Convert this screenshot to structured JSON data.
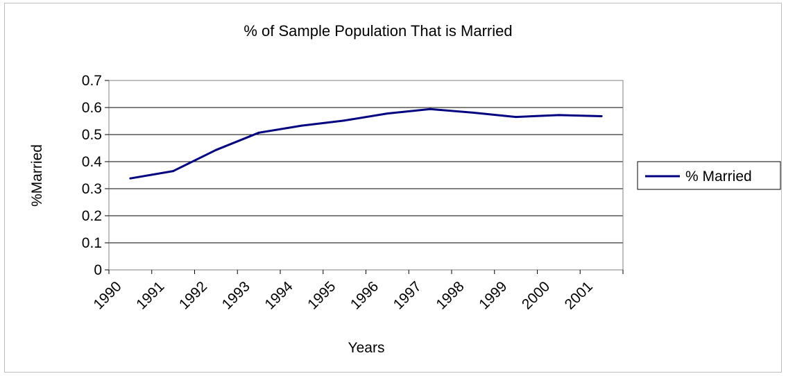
{
  "chart_data": {
    "type": "line",
    "title": "% of Sample Population That is Married",
    "xlabel": "Years",
    "ylabel": "%Married",
    "categories": [
      "1990",
      "1991",
      "1992",
      "1993",
      "1994",
      "1995",
      "1996",
      "1997",
      "1998",
      "1999",
      "2000",
      "2001"
    ],
    "yticks": [
      "0",
      "0.1",
      "0.2",
      "0.3",
      "0.4",
      "0.5",
      "0.6",
      "0.7"
    ],
    "ylim": [
      0,
      0.7
    ],
    "grid": true,
    "legend_position": "right",
    "series": [
      {
        "name": "% Married",
        "color": "#000080",
        "values": [
          0.338,
          0.365,
          0.443,
          0.507,
          0.533,
          0.552,
          0.578,
          0.594,
          0.581,
          0.565,
          0.572,
          0.568
        ]
      }
    ]
  }
}
